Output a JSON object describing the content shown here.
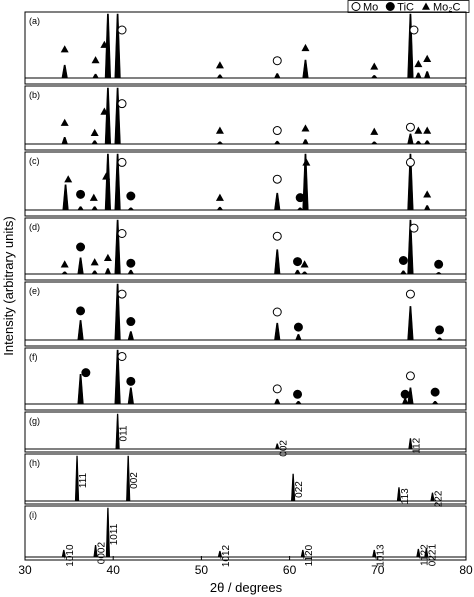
{
  "chart_data": {
    "type": "line",
    "xlabel": "2θ / degrees",
    "ylabel": "Intensity (arbitrary units)",
    "xlim": [
      30,
      80
    ],
    "xticks": [
      30,
      40,
      50,
      60,
      70,
      80
    ],
    "ylim": [
      0,
      100
    ],
    "color": "#000000",
    "legend_position": "top-right",
    "phases": [
      {
        "name": "Mo",
        "marker": "circle-open"
      },
      {
        "name": "TiC",
        "marker": "circle"
      },
      {
        "name": "Mo₂C",
        "marker": "triangle"
      }
    ],
    "panels": [
      {
        "label": "(a)",
        "x": [
          34.5,
          38.0,
          39.4,
          40.5,
          52.1,
          58.6,
          61.8,
          69.6,
          73.7,
          74.6,
          75.6
        ],
        "values": [
          20,
          6,
          100,
          100,
          5,
          7,
          28,
          4,
          100,
          8,
          10
        ],
        "markers": [
          {
            "phase": "Mo",
            "x": [
              41.0,
              58.6,
              74.1
            ],
            "y": [
              75,
              27,
              75
            ]
          },
          {
            "phase": "Mo₂C",
            "x": [
              34.5,
              38.0,
              39.0,
              52.1,
              61.8,
              69.6,
              74.6,
              75.6
            ],
            "y": [
              45,
              28,
              52,
              20,
              47,
              18,
              22,
              30
            ]
          }
        ]
      },
      {
        "label": "(b)",
        "x": [
          34.5,
          37.9,
          39.4,
          40.5,
          52.1,
          58.6,
          61.8,
          69.6,
          73.7,
          74.6,
          75.6
        ],
        "values": [
          12,
          6,
          100,
          100,
          4,
          5,
          8,
          4,
          18,
          5,
          6
        ],
        "markers": [
          {
            "phase": "Mo",
            "x": [
              41.0,
              58.6,
              73.7
            ],
            "y": [
              72,
              24,
              30
            ]
          },
          {
            "phase": "Mo₂C",
            "x": [
              34.5,
              37.9,
              39.0,
              52.1,
              61.8,
              69.6,
              74.6,
              75.6
            ],
            "y": [
              38,
              20,
              58,
              24,
              28,
              22,
              24,
              24
            ]
          }
        ]
      },
      {
        "label": "(c)",
        "x": [
          34.6,
          36.3,
          37.9,
          39.4,
          40.5,
          42.0,
          52.1,
          58.6,
          61.2,
          61.8,
          73.7,
          75.6
        ],
        "values": [
          45,
          6,
          6,
          100,
          100,
          4,
          5,
          30,
          4,
          100,
          100,
          8
        ],
        "markers": [
          {
            "phase": "Mo",
            "x": [
              41.0,
              58.6,
              73.7
            ],
            "y": [
              85,
              55,
              85
            ]
          },
          {
            "phase": "TiC",
            "x": [
              36.3,
              42.0,
              61.2
            ],
            "y": [
              28,
              25,
              22
            ]
          },
          {
            "phase": "Mo₂C",
            "x": [
              34.9,
              37.8,
              39.2,
              52.1,
              61.9,
              75.6
            ],
            "y": [
              55,
              22,
              60,
              22,
              85,
              28
            ]
          }
        ]
      },
      {
        "label": "(d)",
        "x": [
          34.5,
          36.3,
          37.9,
          39.4,
          40.5,
          42.0,
          58.6,
          60.9,
          61.7,
          72.9,
          73.7,
          76.9
        ],
        "values": [
          4,
          30,
          6,
          10,
          100,
          7,
          45,
          7,
          4,
          6,
          100,
          3
        ],
        "markers": [
          {
            "phase": "Mo",
            "x": [
              41.0,
              58.6,
              74.1
            ],
            "y": [
              75,
              70,
              85
            ]
          },
          {
            "phase": "TiC",
            "x": [
              36.3,
              42.0,
              60.9,
              72.9,
              76.9
            ],
            "y": [
              50,
              20,
              23,
              25,
              18
            ]
          },
          {
            "phase": "Mo₂C",
            "x": [
              34.5,
              37.9,
              39.4,
              61.7
            ],
            "y": [
              18,
              22,
              30,
              18
            ]
          }
        ]
      },
      {
        "label": "(e)",
        "x": [
          36.3,
          40.5,
          42.0,
          58.6,
          61.0,
          73.7,
          77.0
        ],
        "values": [
          35,
          100,
          15,
          30,
          10,
          60,
          4
        ],
        "markers": [
          {
            "phase": "Mo",
            "x": [
              41.0,
              58.6,
              73.7
            ],
            "y": [
              82,
              50,
              82
            ]
          },
          {
            "phase": "TiC",
            "x": [
              36.3,
              42.0,
              61.0,
              77.0
            ],
            "y": [
              52,
              33,
              23,
              18
            ]
          }
        ]
      },
      {
        "label": "(f)",
        "x": [
          36.3,
          40.5,
          42.0,
          58.6,
          61.0,
          73.1,
          73.7,
          76.5
        ],
        "values": [
          55,
          100,
          30,
          9,
          5,
          10,
          30,
          5
        ],
        "markers": [
          {
            "phase": "Mo",
            "x": [
              41.0,
              58.6,
              73.7
            ],
            "y": [
              88,
              28,
              52
            ]
          },
          {
            "phase": "TiC",
            "x": [
              36.9,
              42.0,
              60.9,
              73.1,
              76.5
            ],
            "y": [
              58,
              42,
              18,
              18,
              22
            ]
          }
        ]
      },
      {
        "label": "(g)",
        "x": [
          40.5,
          58.6,
          73.7
        ],
        "values": [
          100,
          15,
          30
        ],
        "peak_labels": [
          "011",
          "002",
          "112"
        ]
      },
      {
        "label": "(h)",
        "x": [
          35.9,
          41.7,
          60.4,
          72.4,
          76.2
        ],
        "values": [
          100,
          100,
          60,
          30,
          18
        ],
        "peak_labels": [
          "111",
          "002",
          "022",
          "113",
          "222"
        ]
      },
      {
        "label": "(i)",
        "x": [
          34.4,
          38.0,
          39.4,
          52.1,
          61.5,
          69.6,
          74.6,
          75.5
        ],
        "values": [
          14,
          24,
          100,
          12,
          14,
          14,
          16,
          16
        ],
        "peak_labels": [
          "10̅10",
          "0002",
          "10̅11",
          "10̅12",
          "11̅20",
          "10̅13",
          "11̅22",
          "02̅21"
        ]
      }
    ]
  }
}
